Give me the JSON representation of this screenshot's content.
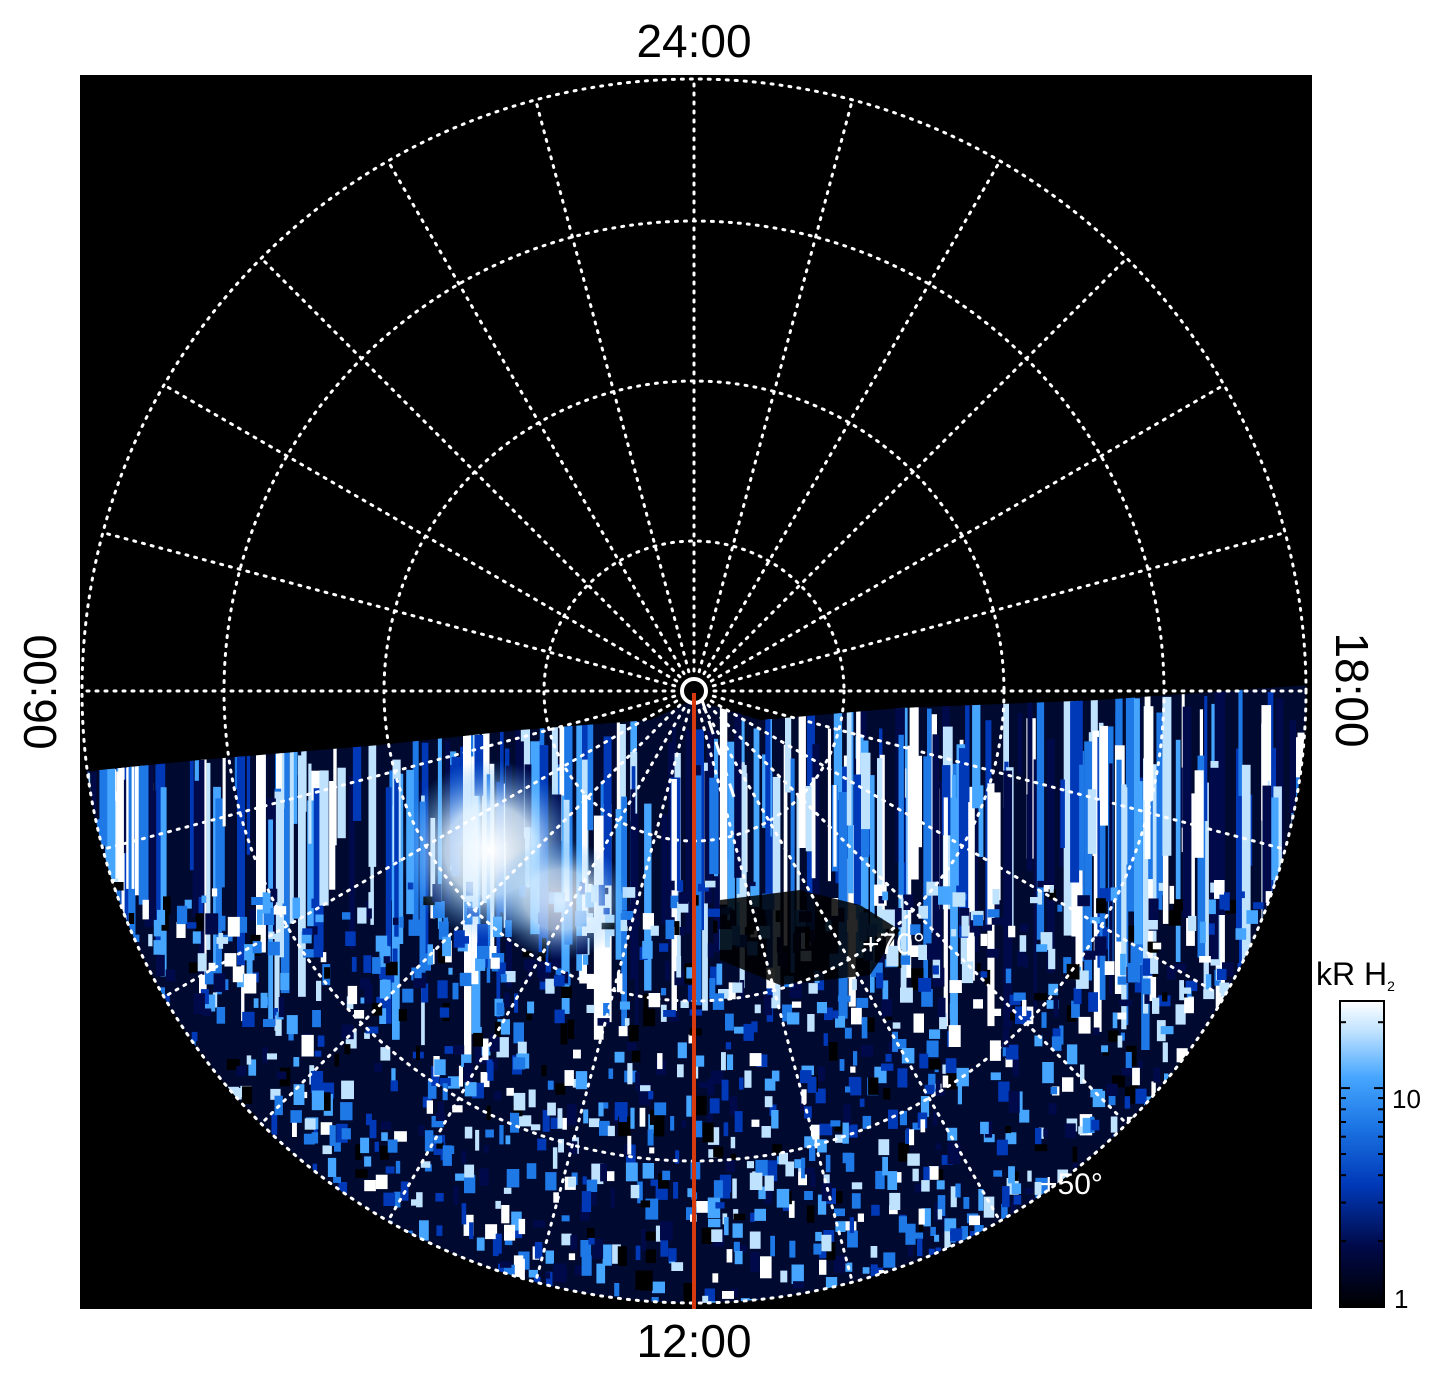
{
  "local_time_labels": {
    "top": "24:00",
    "bottom": "12:00",
    "left": "06:00",
    "right": "18:00"
  },
  "latitude_labels": {
    "lat_70": "+70°",
    "lat_50": "+50°"
  },
  "colorbar": {
    "unit": "kR H",
    "unit_subscript": "2",
    "ticks": [
      "10",
      "1"
    ],
    "range": [
      1,
      25
    ],
    "scale": "log",
    "colors": [
      "#000000",
      "#000a4a",
      "#0039b8",
      "#1e78e6",
      "#46a6ff",
      "#bfe2ff",
      "#ffffff"
    ]
  },
  "colors": {
    "background": "#000000",
    "grid": "#ffffff",
    "meridian_line": "#d83a10"
  }
}
